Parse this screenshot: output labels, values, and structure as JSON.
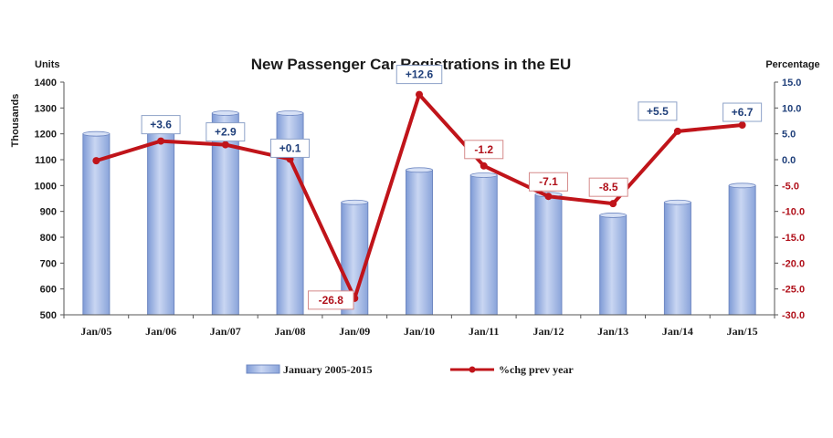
{
  "chart_data": {
    "type": "bar",
    "title": "New Passenger Car Registrations in the EU",
    "left_axis": {
      "unit_label": "Units",
      "label": "Thousands",
      "ylim": [
        500,
        1400
      ],
      "ticks": [
        "500",
        "600",
        "700",
        "800",
        "900",
        "1000",
        "1100",
        "1200",
        "1300",
        "1400"
      ]
    },
    "right_axis": {
      "label": "Percentage",
      "ylim": [
        -30.0,
        15.0
      ],
      "ticks": [
        "-30.0",
        "-25.0",
        "-20.0",
        "-15.0",
        "-10.0",
        "-5.0",
        "0.0",
        "5.0",
        "10.0",
        "15.0"
      ]
    },
    "categories": [
      "Jan/05",
      "Jan/06",
      "Jan/07",
      "Jan/08",
      "Jan/09",
      "Jan/10",
      "Jan/11",
      "Jan/12",
      "Jan/13",
      "Jan/14",
      "Jan/15"
    ],
    "series": [
      {
        "name": "January 2005-2015",
        "type": "bar",
        "axis": "left",
        "color": "#9db3e0",
        "values": [
          1200,
          1240,
          1280,
          1280,
          935,
          1060,
          1040,
          965,
          885,
          935,
          1000
        ]
      },
      {
        "name": "%chg prev year",
        "type": "line",
        "axis": "right",
        "color": "#c0141a",
        "values": [
          -0.2,
          3.6,
          2.9,
          0.1,
          -26.8,
          12.6,
          -1.2,
          -7.1,
          -8.5,
          5.5,
          6.7
        ],
        "labels": [
          "",
          "+3.6",
          "+2.9",
          "+0.1",
          "-26.8",
          "+12.6",
          "-1.2",
          "-7.1",
          "-8.5",
          "+5.5",
          "+6.7"
        ]
      }
    ],
    "label_colors": {
      "positive": "#1f3f7a",
      "negative": "#b0101a",
      "negative_axis": "#b0101a",
      "positive_axis": "#1f3f7a"
    },
    "legend_placement": "bottom",
    "grid": false
  }
}
